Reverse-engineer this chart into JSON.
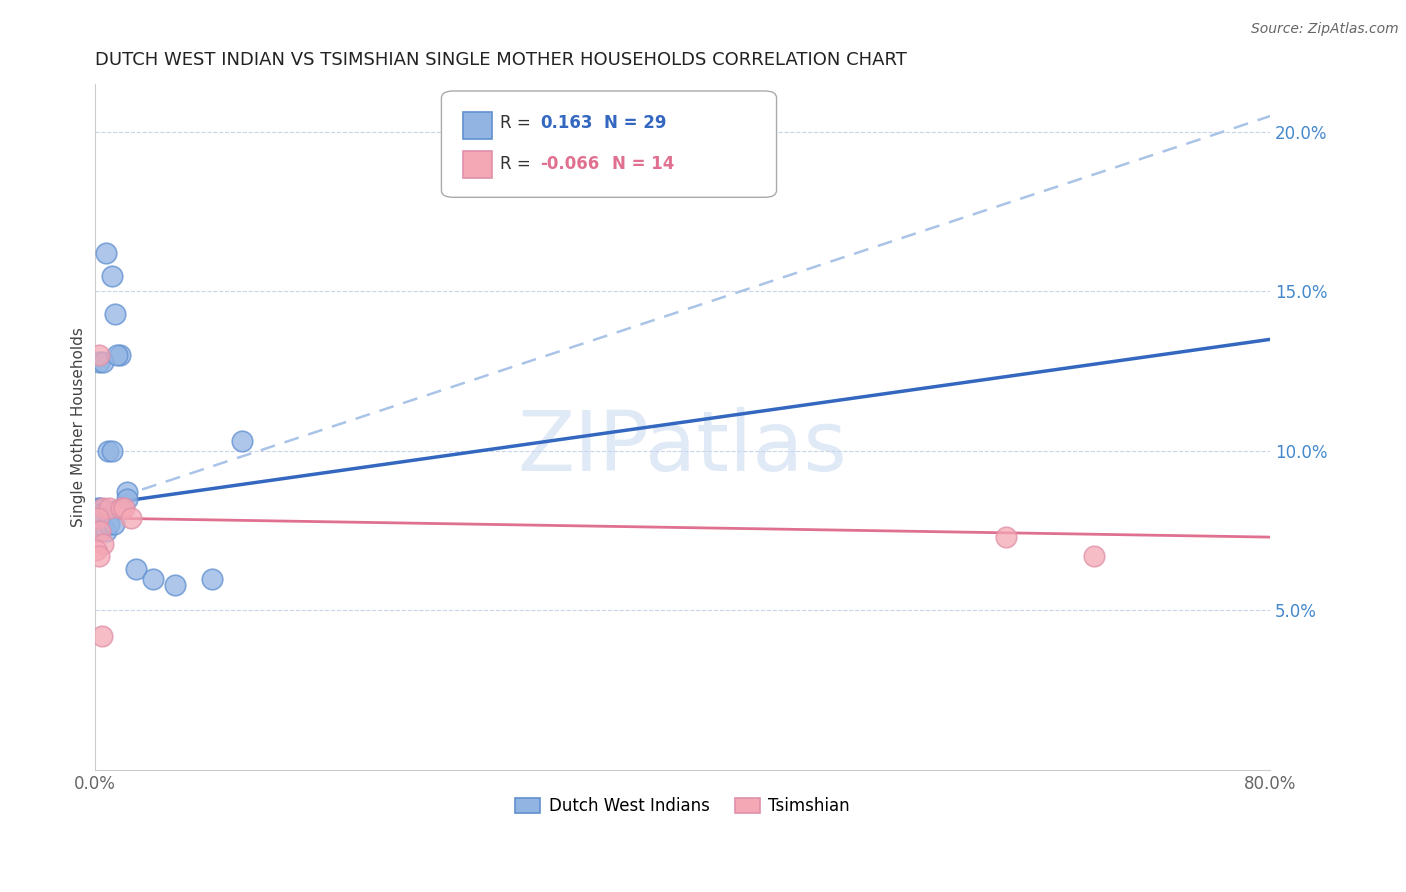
{
  "title": "DUTCH WEST INDIAN VS TSIMSHIAN SINGLE MOTHER HOUSEHOLDS CORRELATION CHART",
  "source": "Source: ZipAtlas.com",
  "ylabel": "Single Mother Households",
  "xlim": [
    0.0,
    0.8
  ],
  "ylim": [
    0.0,
    0.215
  ],
  "yticks": [
    0.05,
    0.1,
    0.15,
    0.2
  ],
  "ytick_labels": [
    "5.0%",
    "10.0%",
    "15.0%",
    "20.0%"
  ],
  "xticks": [
    0.0,
    0.1,
    0.2,
    0.3,
    0.4,
    0.5,
    0.6,
    0.7,
    0.8
  ],
  "xtick_labels": [
    "0.0%",
    "",
    "",
    "",
    "",
    "",
    "",
    "",
    "80.0%"
  ],
  "blue_R": 0.163,
  "blue_N": 29,
  "pink_R": -0.066,
  "pink_N": 14,
  "blue_color": "#92b4e3",
  "pink_color": "#f4a7b5",
  "blue_line_color": "#3468c0",
  "pink_line_color": "#e07090",
  "dashed_line_color": "#aac4e8",
  "background_color": "#ffffff",
  "grid_color": "#c8d4e8",
  "blue_points_x": [
    0.008,
    0.012,
    0.014,
    0.017,
    0.003,
    0.006,
    0.009,
    0.012,
    0.015,
    0.002,
    0.003,
    0.004,
    0.002,
    0.003,
    0.004,
    0.001,
    0.003,
    0.022,
    0.028,
    0.1,
    0.001,
    0.002,
    0.022,
    0.055,
    0.008,
    0.01,
    0.013,
    0.04,
    0.08
  ],
  "blue_points_y": [
    0.162,
    0.155,
    0.143,
    0.13,
    0.128,
    0.128,
    0.1,
    0.1,
    0.13,
    0.082,
    0.08,
    0.082,
    0.08,
    0.079,
    0.078,
    0.079,
    0.079,
    0.087,
    0.063,
    0.103,
    0.077,
    0.075,
    0.085,
    0.058,
    0.075,
    0.077,
    0.077,
    0.06,
    0.06
  ],
  "pink_points_x": [
    0.003,
    0.006,
    0.01,
    0.018,
    0.02,
    0.025,
    0.002,
    0.004,
    0.006,
    0.001,
    0.003,
    0.62,
    0.68,
    0.005
  ],
  "pink_points_y": [
    0.13,
    0.082,
    0.082,
    0.082,
    0.082,
    0.079,
    0.079,
    0.075,
    0.071,
    0.069,
    0.067,
    0.073,
    0.067,
    0.042
  ],
  "legend_label_blue": "Dutch West Indians",
  "legend_label_pink": "Tsimshian",
  "blue_line_y0": 0.083,
  "blue_line_y1": 0.135,
  "blue_line_x0": 0.0,
  "blue_line_x1": 0.8,
  "dashed_line_y0": 0.083,
  "dashed_line_y1": 0.205,
  "dashed_line_x0": 0.0,
  "dashed_line_x1": 0.8,
  "pink_line_y0": 0.079,
  "pink_line_y1": 0.073,
  "pink_line_x0": 0.0,
  "pink_line_x1": 0.8,
  "watermark": "ZIPatlas",
  "watermark_color": "#c8d8f0"
}
